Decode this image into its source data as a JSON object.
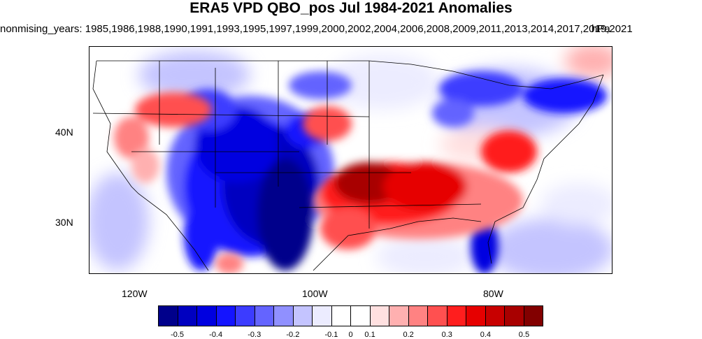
{
  "title": "ERA5 VPD QBO_pos Jul 1984-2021 Anomalies",
  "subtitle": "nonmising_years: 1985,1986,1988,1990,1991,1993,1995,1997,1999,2000,2002,2004,2006,2008,2009,2011,2013,2014,2017,2019,2021",
  "units": "hPa",
  "map": {
    "lon_range": [
      -126,
      -68
    ],
    "lat_range": [
      24.5,
      49.5
    ],
    "lon_ticks": [
      {
        "value": -120,
        "label": "120W"
      },
      {
        "value": -100,
        "label": "100W"
      },
      {
        "value": -80,
        "label": "80W"
      }
    ],
    "lat_ticks": [
      {
        "value": 40,
        "label": "40N"
      },
      {
        "value": 30,
        "label": "30N"
      }
    ]
  },
  "colorbar": {
    "colors": [
      "#00008b",
      "#0000c0",
      "#0000e0",
      "#1414ff",
      "#3c3cff",
      "#6464ff",
      "#9090ff",
      "#c4c4ff",
      "#ececff",
      "#ffffff",
      "#ffffff",
      "#ffe0e0",
      "#ffb0b0",
      "#ff8282",
      "#ff5050",
      "#ff1e1e",
      "#e60000",
      "#c80000",
      "#a80000",
      "#820000"
    ],
    "labels": [
      "-0.5",
      "-0.4",
      "-0.3",
      "-0.2",
      "-0.1",
      "0",
      "0.1",
      "0.2",
      "0.3",
      "0.4",
      "0.5"
    ]
  }
}
